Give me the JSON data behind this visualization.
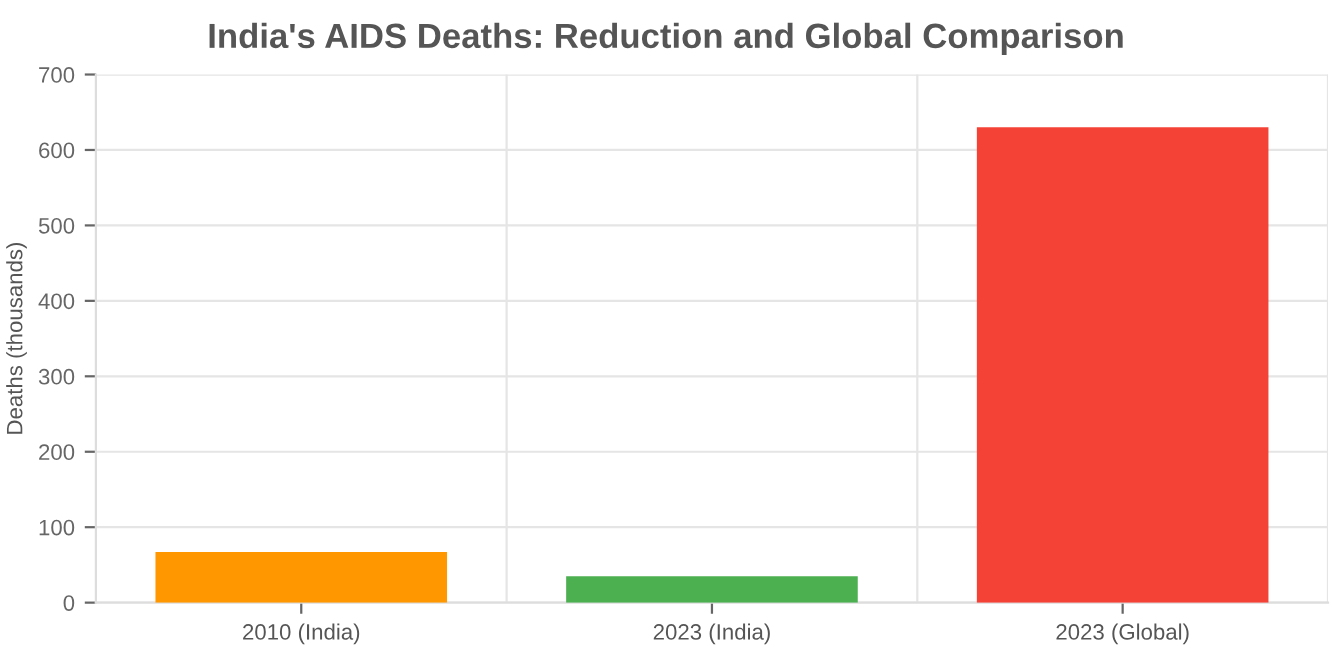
{
  "chart_data": {
    "type": "bar",
    "title": "India's AIDS Deaths: Reduction and Global Comparison",
    "ylabel": "Deaths (thousands)",
    "categories": [
      "2010 (India)",
      "2023 (India)",
      "2023 (Global)"
    ],
    "values": [
      67,
      35,
      630
    ],
    "colors": [
      "#ff9800",
      "#4caf50",
      "#f44336"
    ],
    "ylim": [
      0,
      700
    ],
    "yticks": [
      0,
      100,
      200,
      300,
      400,
      500,
      600,
      700
    ],
    "grid": true
  }
}
